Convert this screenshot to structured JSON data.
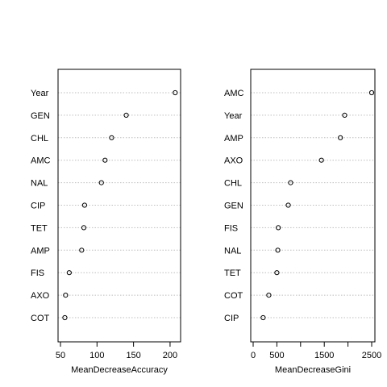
{
  "chart_data": [
    {
      "type": "dot",
      "xlabel": "MeanDecreaseAccuracy",
      "xlim": [
        50,
        210
      ],
      "xticks": [
        50,
        100,
        150,
        200
      ],
      "grid": true,
      "categories": [
        "Year",
        "GEN",
        "CHL",
        "AMC",
        "NAL",
        "CIP",
        "TET",
        "AMP",
        "FIS",
        "AXO",
        "COT"
      ],
      "values": [
        207,
        140,
        120,
        111,
        106,
        83,
        82,
        79,
        62,
        57,
        56
      ]
    },
    {
      "type": "dot",
      "xlabel": "MeanDecreaseGini",
      "xlim": [
        0,
        2500
      ],
      "xticks": [
        0,
        500,
        1000,
        1500,
        2000,
        2500
      ],
      "xtick_labels": [
        "0",
        "500",
        "",
        "1500",
        "",
        "2500"
      ],
      "grid": true,
      "categories": [
        "AMC",
        "Year",
        "AMP",
        "AXO",
        "CHL",
        "GEN",
        "FIS",
        "NAL",
        "TET",
        "COT",
        "CIP"
      ],
      "values": [
        2500,
        1930,
        1840,
        1440,
        790,
        740,
        530,
        520,
        500,
        330,
        210
      ]
    }
  ]
}
